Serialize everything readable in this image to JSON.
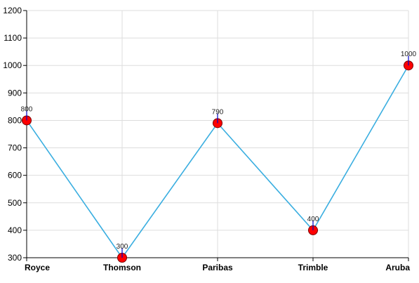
{
  "chart_data": {
    "type": "line",
    "title": "",
    "xlabel": "",
    "ylabel": "",
    "categories": [
      "Royce",
      "Thomson",
      "Paribas",
      "Trimble",
      "Aruba"
    ],
    "series": [
      {
        "values": [
          800,
          300,
          790,
          400,
          1000
        ],
        "data_labels": [
          "800",
          "300",
          "790",
          "400",
          "1000"
        ]
      }
    ],
    "ylim": [
      300,
      1200
    ],
    "y_ticks": [
      "300",
      "400",
      "500",
      "600",
      "700",
      "800",
      "900",
      "1000",
      "1100",
      "1200"
    ],
    "grid": true,
    "legend": "none",
    "colors": {
      "line": "#3aaee0",
      "marker_fill": "#ff0000",
      "marker_stroke": "#7a0000",
      "label_stem": "#0000cc",
      "grid": "#dddddd",
      "axis": "#000000"
    }
  }
}
